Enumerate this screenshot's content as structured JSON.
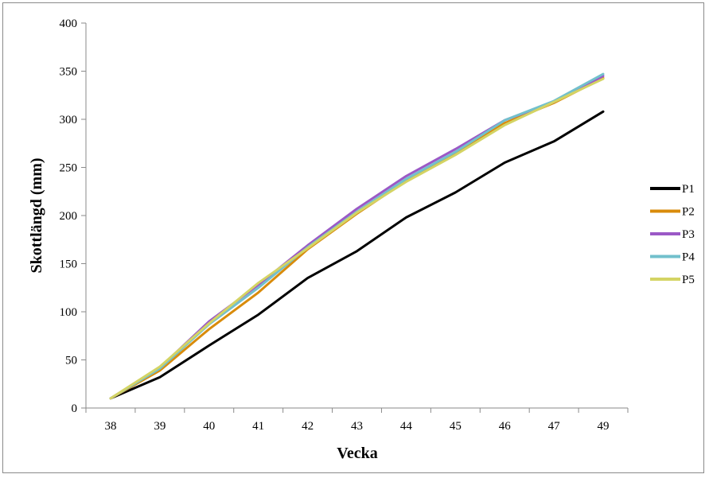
{
  "chart_data": {
    "type": "line",
    "title": "",
    "xlabel": "Vecka",
    "ylabel": "Skottlängd (mm)",
    "ylim": [
      0,
      400
    ],
    "y_ticks": [
      0,
      50,
      100,
      150,
      200,
      250,
      300,
      350,
      400
    ],
    "categories": [
      "38",
      "39",
      "40",
      "41",
      "42",
      "43",
      "44",
      "45",
      "46",
      "47",
      "49"
    ],
    "grid": false,
    "legend_position": "right",
    "series": [
      {
        "name": "P1",
        "color": "#000000",
        "values": [
          10,
          32,
          65,
          97,
          135,
          163,
          198,
          224,
          255,
          277,
          308
        ]
      },
      {
        "name": "P2",
        "color": "#d98b0b",
        "values": [
          10,
          39,
          82,
          120,
          165,
          202,
          236,
          265,
          296,
          317,
          343
        ]
      },
      {
        "name": "P3",
        "color": "#9b59c6",
        "values": [
          10,
          42,
          90,
          128,
          169,
          207,
          241,
          269,
          299,
          318,
          345
        ]
      },
      {
        "name": "P4",
        "color": "#72c0cc",
        "values": [
          10,
          41,
          87,
          125,
          167,
          204,
          238,
          266,
          299,
          319,
          347
        ]
      },
      {
        "name": "P5",
        "color": "#d4d464",
        "values": [
          10,
          43,
          88,
          130,
          166,
          203,
          235,
          263,
          294,
          318,
          342
        ]
      }
    ]
  }
}
